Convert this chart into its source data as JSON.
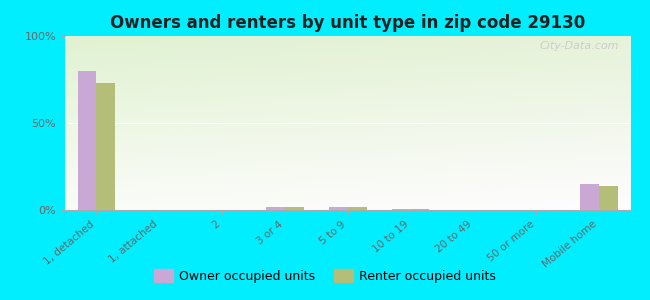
{
  "title": "Owners and renters by unit type in zip code 29130",
  "categories": [
    "1, detached",
    "1, attached",
    "2",
    "3 or 4",
    "5 to 9",
    "10 to 19",
    "20 to 49",
    "50 or more",
    "Mobile home"
  ],
  "owner_values": [
    80,
    0,
    0,
    1.5,
    1.5,
    0.8,
    0,
    0,
    15
  ],
  "renter_values": [
    73,
    0,
    0,
    1.5,
    1.5,
    0.8,
    0,
    0,
    14
  ],
  "owner_color": "#c9a8d5",
  "renter_color": "#b5be78",
  "outer_bg": "#00eeff",
  "ylim": [
    0,
    100
  ],
  "yticks": [
    0,
    50,
    100
  ],
  "ytick_labels": [
    "0%",
    "50%",
    "100%"
  ],
  "bar_width": 0.3,
  "legend_owner": "Owner occupied units",
  "legend_renter": "Renter occupied units",
  "title_fontsize": 12,
  "watermark": "City-Data.com"
}
